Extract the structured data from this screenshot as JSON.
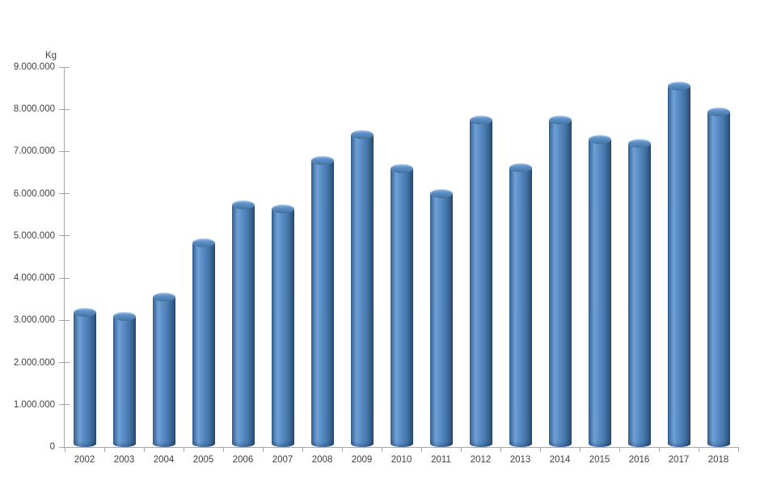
{
  "chart": {
    "unit_label": "Kg",
    "colors": {
      "axis": "#a6a6a6",
      "label_text": "#404040",
      "bar_base": "#4f81bd",
      "bar_highlight": "#6fa0d8",
      "bar_shadow_edge": "#2a4e75",
      "background": "#ffffff"
    }
  },
  "chart_data": {
    "type": "bar",
    "subtype": "cylinder-3d",
    "title": "",
    "xlabel": "",
    "ylabel": "Kg",
    "categories": [
      "2002",
      "2003",
      "2004",
      "2005",
      "2006",
      "2007",
      "2008",
      "2009",
      "2010",
      "2011",
      "2012",
      "2013",
      "2014",
      "2015",
      "2016",
      "2017",
      "2018"
    ],
    "values": [
      3300000,
      3200000,
      3650000,
      4950000,
      5850000,
      5750000,
      6900000,
      7500000,
      6700000,
      6100000,
      7850000,
      6720000,
      7850000,
      7400000,
      7300000,
      8650000,
      8050000
    ],
    "series_name": "Kg",
    "ylim": [
      0,
      9000000
    ],
    "ytick_step": 1000000,
    "ytick_labels": [
      "0",
      "1.000.000",
      "2.000.000",
      "3.000.000",
      "4.000.000",
      "5.000.000",
      "6.000.000",
      "7.000.000",
      "8.000.000",
      "9.000.000"
    ],
    "grid": false,
    "legend_position": "none"
  }
}
